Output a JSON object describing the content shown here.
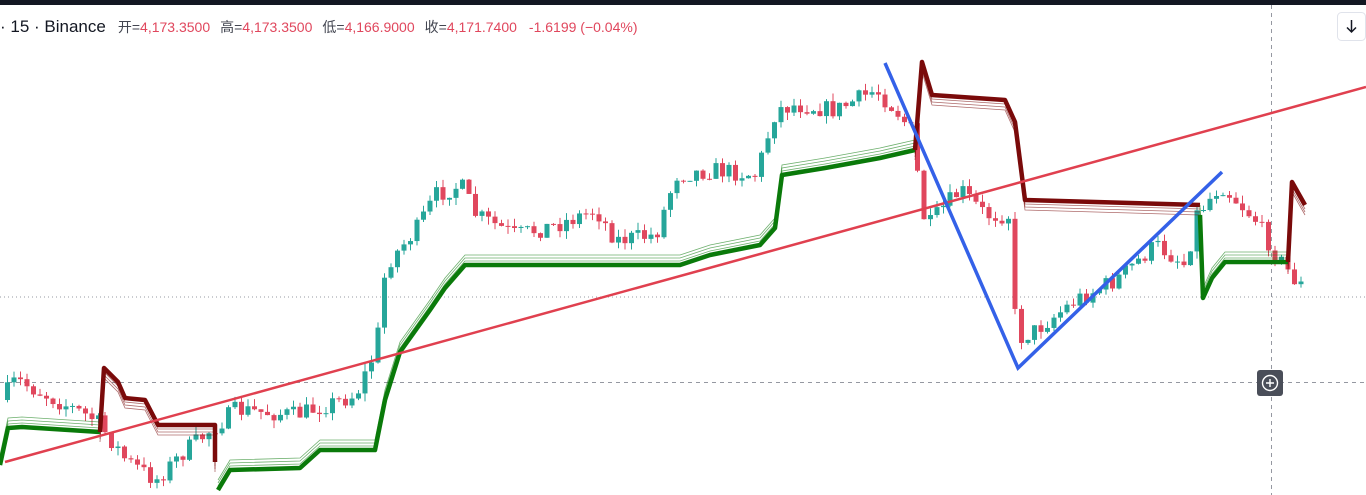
{
  "header": {
    "symbol": "· 15 · Binance",
    "ohlc": [
      {
        "label": "开=",
        "value": "4,173.3500"
      },
      {
        "label": "高=",
        "value": "4,173.3500"
      },
      {
        "label": "低=",
        "value": "4,166.9000"
      },
      {
        "label": "收=",
        "value": "4,171.7400"
      }
    ],
    "change": "-1.6199 (−0.04%)"
  }
}
